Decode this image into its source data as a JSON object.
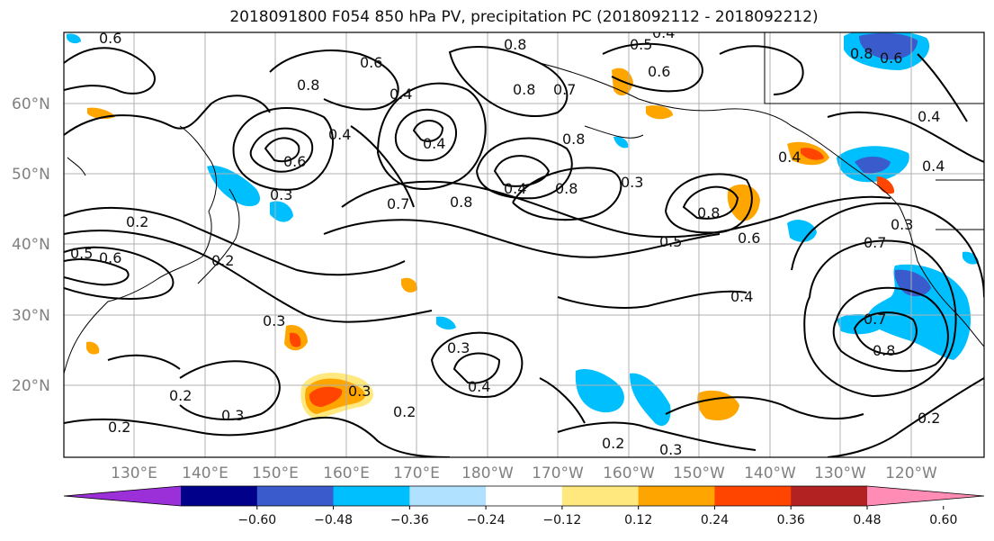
{
  "title": "2018091800 F054 850 hPa PV, precipitation PC (2018092112 - 2018092212)",
  "lat_labels": [
    "60°N",
    "50°N",
    "40°N",
    "30°N",
    "20°N"
  ],
  "lon_labels": [
    "130°E",
    "140°E",
    "150°E",
    "160°E",
    "170°E",
    "180°W",
    "170°W",
    "160°W",
    "150°W",
    "140°W",
    "130°W",
    "120°W"
  ],
  "colorbar": {
    "colors": [
      "#9b30d9",
      "#00008b",
      "#3a5bcc",
      "#00bfff",
      "#b0e2ff",
      "#ffffff",
      "#ffe97f",
      "#ffa500",
      "#ff4500",
      "#b22222",
      "#ff8cb5"
    ],
    "tick_labels": [
      "−0.60",
      "−0.48",
      "−0.36",
      "−0.24",
      "−0.12",
      "0.12",
      "0.24",
      "0.36",
      "0.48",
      "0.60"
    ]
  },
  "contour_labels": [
    "0.6",
    "0.8",
    "0.5",
    "0.4",
    "0.6",
    "0.8",
    "0.7",
    "0.6",
    "0.8",
    "0.6",
    "0.4",
    "0.4",
    "0.4",
    "0.8",
    "0.8",
    "0.4",
    "0.6",
    "0.3",
    "0.4",
    "0.8",
    "0.7",
    "0.4",
    "0.8",
    "0.8",
    "0.3",
    "0.2",
    "0.4",
    "0.5",
    "0.6",
    "0.2",
    "0.5",
    "0.3",
    "0.7",
    "0.3",
    "0.4",
    "0.2",
    "0.3",
    "0.2",
    "0.3",
    "0.2",
    "0.3",
    "0.2",
    "0.7",
    "0.8",
    "0.2",
    "0.3",
    "0.4",
    "0.6"
  ]
}
